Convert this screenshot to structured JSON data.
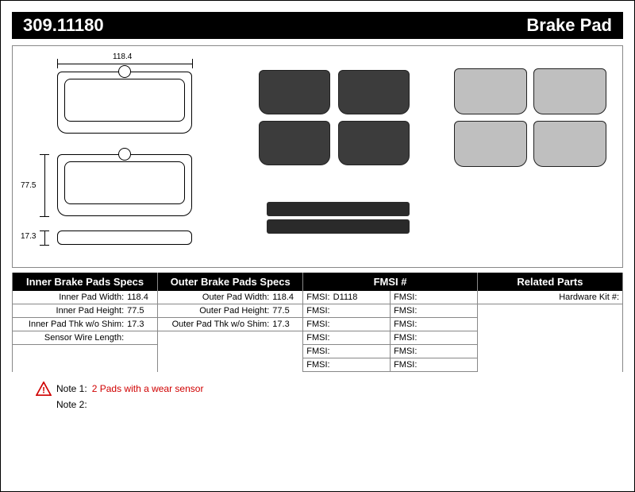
{
  "header": {
    "part_number": "309.11180",
    "product_name": "Brake Pad"
  },
  "diagram": {
    "dim_width": "118.4",
    "dim_height": "77.5",
    "dim_thickness": "17.3"
  },
  "inner_specs": {
    "title": "Inner Brake Pads Specs",
    "rows": [
      {
        "label": "Inner Pad Width:",
        "value": "118.4"
      },
      {
        "label": "Inner Pad Height:",
        "value": "77.5"
      },
      {
        "label": "Inner Pad Thk w/o Shim:",
        "value": "17.3"
      },
      {
        "label": "Sensor Wire Length:",
        "value": ""
      }
    ]
  },
  "outer_specs": {
    "title": "Outer Brake Pads Specs",
    "rows": [
      {
        "label": "Outer Pad Width:",
        "value": "118.4"
      },
      {
        "label": "Outer Pad Height:",
        "value": "77.5"
      },
      {
        "label": "Outer Pad Thk w/o Shim:",
        "value": "17.3"
      }
    ]
  },
  "fmsi": {
    "title": "FMSI #",
    "col1": [
      "D1118",
      "",
      "",
      "",
      "",
      ""
    ],
    "col2": [
      "",
      "",
      "",
      "",
      "",
      ""
    ],
    "label": "FMSI:"
  },
  "related": {
    "title": "Related Parts",
    "hardware_label": "Hardware Kit #:"
  },
  "notes": {
    "note1_label": "Note 1:",
    "note1_text": "2 Pads with a wear sensor",
    "note2_label": "Note 2:",
    "note2_text": ""
  },
  "colors": {
    "warn_fill": "#d00000"
  }
}
